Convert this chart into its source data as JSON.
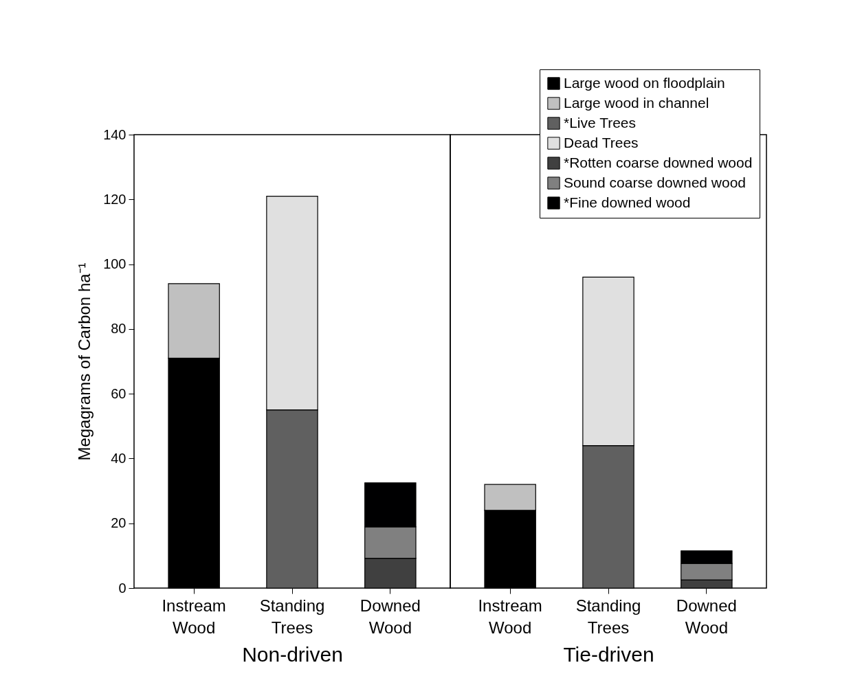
{
  "chart_data": [
    {
      "type": "bar",
      "stacked": true,
      "categories": [
        "Instream Wood",
        "Standing Trees",
        "Downed Wood"
      ],
      "xlabel": "Non-driven",
      "legend": "top right",
      "ylabel": "Megagrams of Carbon ha⁻¹",
      "ylim": [
        0,
        140
      ],
      "yticks": [
        0,
        20,
        40,
        60,
        80,
        100,
        120,
        140
      ],
      "series": [
        {
          "name": "Large wood on floodplain",
          "color": "#000000",
          "values": [
            71,
            null,
            null
          ]
        },
        {
          "name": "Large wood in channel",
          "color": "#c0c0c0",
          "values": [
            23,
            null,
            null
          ]
        },
        {
          "name": "*Live Trees",
          "color": "#606060",
          "values": [
            null,
            55,
            null
          ]
        },
        {
          "name": "Dead Trees",
          "color": "#e0e0e0",
          "values": [
            null,
            66,
            null
          ]
        },
        {
          "name": "*Rotten coarse downed wood",
          "color": "#404040",
          "values": [
            null,
            null,
            9.2
          ]
        },
        {
          "name": "Sound coarse downed wood",
          "color": "#808080",
          "values": [
            null,
            null,
            9.7
          ]
        },
        {
          "name": "*Fine downed wood",
          "color": "#000001",
          "values": [
            null,
            null,
            13.6
          ]
        }
      ]
    },
    {
      "type": "bar",
      "stacked": true,
      "categories": [
        "Instream Wood",
        "Standing Trees",
        "Downed Wood"
      ],
      "xlabel": "Tie-driven",
      "ylim": [
        0,
        140
      ],
      "tick_labels": "x",
      "series": [
        {
          "name": "Large wood on floodplain",
          "color": "#000000",
          "values": [
            24,
            null,
            null
          ]
        },
        {
          "name": "Large wood in channel",
          "color": "#c0c0c0",
          "values": [
            8,
            null,
            null
          ]
        },
        {
          "name": "*Live Trees",
          "color": "#606060",
          "values": [
            null,
            44,
            null
          ]
        },
        {
          "name": "Dead Trees",
          "color": "#e0e0e0",
          "values": [
            null,
            52,
            null
          ]
        },
        {
          "name": "*Rotten coarse downed wood",
          "color": "#404040",
          "values": [
            null,
            null,
            2.5
          ]
        },
        {
          "name": "Sound coarse downed wood",
          "color": "#808080",
          "values": [
            null,
            null,
            5.1
          ]
        },
        {
          "name": "*Fine downed wood",
          "color": "#000001",
          "values": [
            null,
            null,
            3.9
          ]
        }
      ]
    }
  ]
}
